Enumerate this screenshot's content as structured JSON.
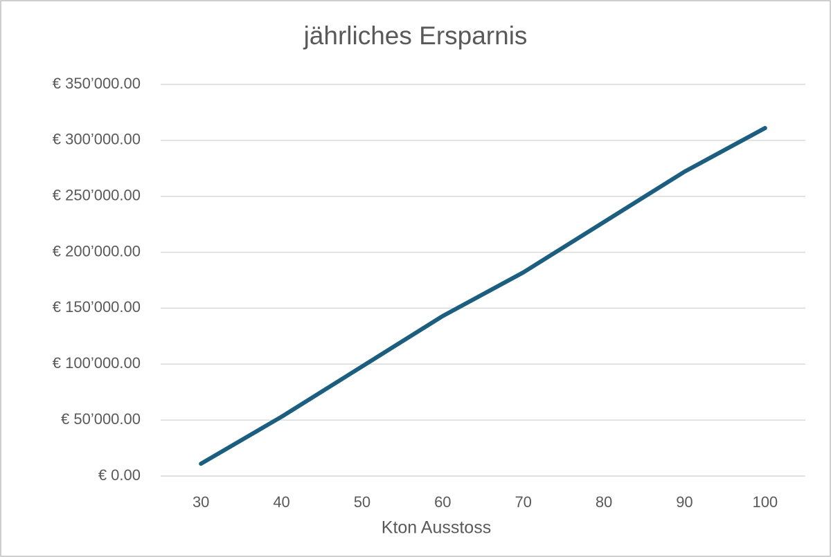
{
  "chart_data": {
    "type": "line",
    "title": "jährliches Ersparnis",
    "x_label": "Kton Ausstoss",
    "categories": [
      "30",
      "40",
      "50",
      "60",
      "70",
      "80",
      "90",
      "100"
    ],
    "series": [
      {
        "name": "jährliches Ersparnis",
        "color": "#1b5e7f",
        "values": [
          11000,
          53000,
          98000,
          143000,
          182000,
          227000,
          272000,
          311000
        ]
      }
    ],
    "ylim": [
      0,
      350000
    ],
    "yticks": [
      {
        "value": 0,
        "label": "€ 0.00"
      },
      {
        "value": 50000,
        "label": "€ 50’000.00"
      },
      {
        "value": 100000,
        "label": "€ 100’000.00"
      },
      {
        "value": 150000,
        "label": "€ 150’000.00"
      },
      {
        "value": 200000,
        "label": "€ 200’000.00"
      },
      {
        "value": 250000,
        "label": "€ 250’000.00"
      },
      {
        "value": 300000,
        "label": "€ 300’000.00"
      },
      {
        "value": 350000,
        "label": "€ 350’000.00"
      }
    ],
    "grid": true
  }
}
